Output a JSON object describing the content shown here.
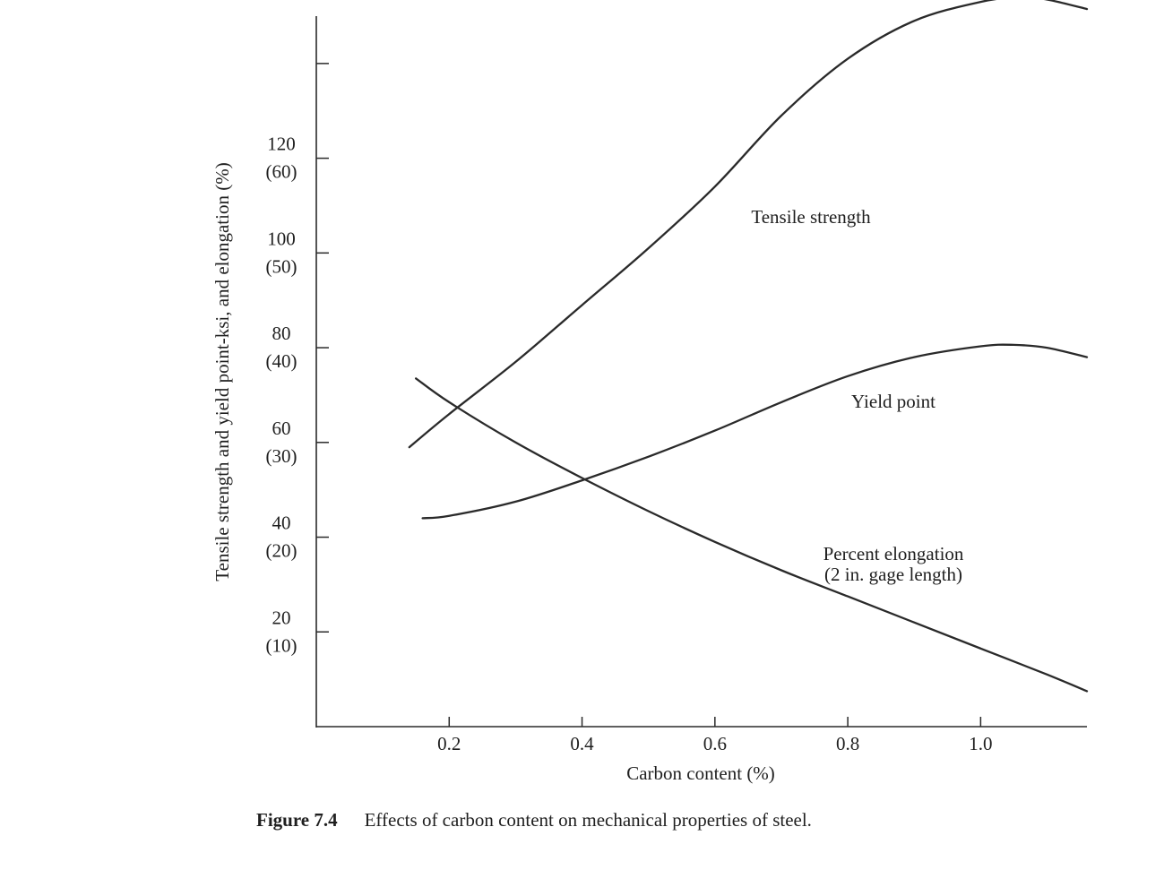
{
  "chart_data": {
    "type": "line",
    "xlabel": "Carbon content (%)",
    "ylabel": "Tensile strength and yield point-ksi, and elongation (%)",
    "xlim": [
      0,
      1.16
    ],
    "ylim": [
      0,
      150
    ],
    "x_ticks": [
      {
        "value": 0.2,
        "label": "0.2"
      },
      {
        "value": 0.4,
        "label": "0.4"
      },
      {
        "value": 0.6,
        "label": "0.6"
      },
      {
        "value": 0.8,
        "label": "0.8"
      },
      {
        "value": 1.0,
        "label": "1.0"
      }
    ],
    "y_ticks": [
      {
        "value": 20,
        "primary": "20",
        "secondary": "(10)"
      },
      {
        "value": 40,
        "primary": "40",
        "secondary": "(20)"
      },
      {
        "value": 60,
        "primary": "60",
        "secondary": "(30)"
      },
      {
        "value": 80,
        "primary": "80",
        "secondary": "(40)"
      },
      {
        "value": 100,
        "primary": "100",
        "secondary": "(50)"
      },
      {
        "value": 120,
        "primary": "120",
        "secondary": "(60)"
      },
      {
        "value": 140,
        "primary": "",
        "secondary": ""
      }
    ],
    "grid": false,
    "series": [
      {
        "name": "Tensile strength",
        "label_lines": [
          "Tensile strength"
        ],
        "color": "#2a2a2a",
        "x": [
          0.14,
          0.2,
          0.3,
          0.4,
          0.5,
          0.6,
          0.7,
          0.8,
          0.9,
          1.0,
          1.06,
          1.1,
          1.16
        ],
        "y": [
          59,
          66,
          77,
          89,
          101,
          114,
          129,
          141,
          149,
          153,
          154,
          153.5,
          151.5
        ]
      },
      {
        "name": "Yield point",
        "label_lines": [
          "Yield point"
        ],
        "color": "#2a2a2a",
        "x": [
          0.16,
          0.2,
          0.3,
          0.4,
          0.5,
          0.6,
          0.7,
          0.8,
          0.9,
          1.0,
          1.05,
          1.1,
          1.16
        ],
        "y": [
          44,
          44.5,
          47.5,
          52,
          57,
          62.5,
          68.5,
          74,
          78,
          80.3,
          80.6,
          80,
          78
        ]
      },
      {
        "name": "Percent elongation (2 in. gage length)",
        "label_lines": [
          "Percent elongation",
          "(2 in. gage length)"
        ],
        "color": "#2a2a2a",
        "x": [
          0.15,
          0.2,
          0.3,
          0.4,
          0.5,
          0.6,
          0.7,
          0.8,
          0.9,
          1.0,
          1.1,
          1.16
        ],
        "y": [
          73.5,
          68.5,
          60,
          52.5,
          45.5,
          39,
          33,
          27.5,
          22,
          16.5,
          11,
          7.5
        ]
      }
    ]
  },
  "caption": {
    "number": "Figure 7.4",
    "text": "Effects of carbon content on mechanical properties of steel."
  }
}
